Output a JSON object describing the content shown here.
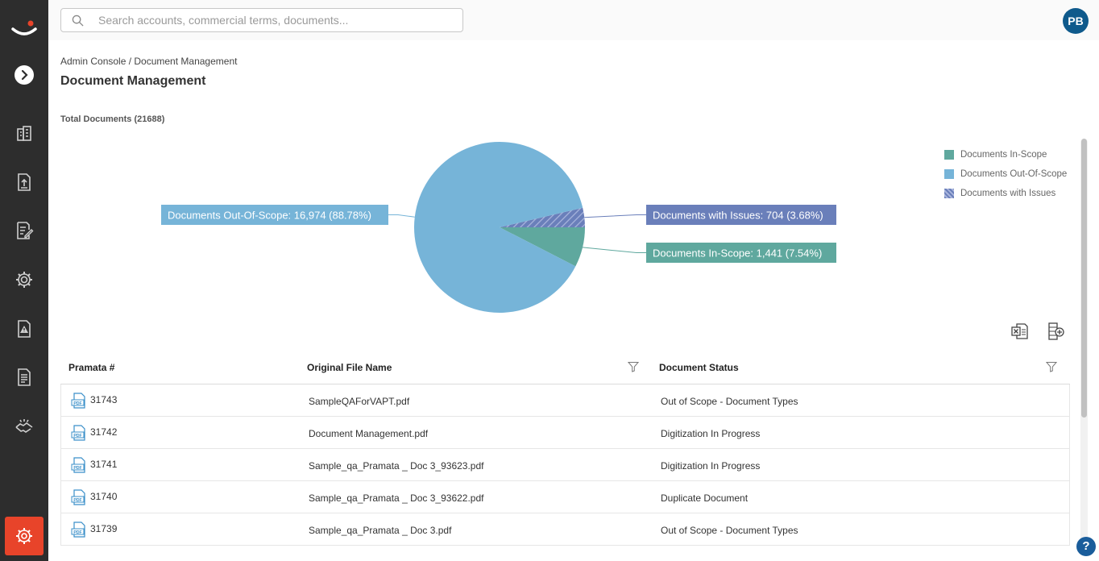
{
  "search": {
    "placeholder": "Search accounts, commercial terms, documents..."
  },
  "user": {
    "initials": "PB"
  },
  "breadcrumb": "Admin Console / Document Management",
  "page_title": "Document Management",
  "total_label": "Total Documents (21688)",
  "colors": {
    "in_scope": "#5fa89e",
    "out_of_scope": "#76b4d8",
    "issues": "#6a7fba",
    "sidebar": "#2d2d2d",
    "accent": "#e8442a"
  },
  "chart_data": {
    "type": "pie",
    "title": "",
    "slices": [
      {
        "name": "Documents Out-Of-Scope",
        "value": 16974,
        "percent": 88.78,
        "label": "Documents Out-Of-Scope: 16,974 (88.78%)",
        "color": "#76b4d8"
      },
      {
        "name": "Documents with Issues",
        "value": 704,
        "percent": 3.68,
        "label": "Documents with Issues: 704 (3.68%)",
        "color": "#6a7fba",
        "pattern": "hatched"
      },
      {
        "name": "Documents In-Scope",
        "value": 1441,
        "percent": 7.54,
        "label": "Documents In-Scope: 1,441 (7.54%)",
        "color": "#5fa89e"
      }
    ],
    "legend": [
      "Documents In-Scope",
      "Documents Out-Of-Scope",
      "Documents with Issues"
    ],
    "legend_position": "top-right"
  },
  "table": {
    "columns": [
      "Pramata #",
      "Original File Name",
      "Document Status"
    ],
    "rows": [
      {
        "id": "31743",
        "file": "SampleQAForVAPT.pdf",
        "status": "Out of Scope - Document Types"
      },
      {
        "id": "31742",
        "file": "Document Management.pdf",
        "status": "Digitization In Progress"
      },
      {
        "id": "31741",
        "file": "Sample_qa_Pramata _ Doc 3_93623.pdf",
        "status": "Digitization In Progress"
      },
      {
        "id": "31740",
        "file": "Sample_qa_Pramata _ Doc 3_93622.pdf",
        "status": "Duplicate Document"
      },
      {
        "id": "31739",
        "file": "Sample_qa_Pramata _ Doc 3.pdf",
        "status": "Out of Scope - Document Types"
      }
    ]
  },
  "icons": {
    "sidebar": [
      "logo-icon",
      "expand-icon",
      "buildings-icon",
      "upload-document-icon",
      "edit-document-icon",
      "gear-icon",
      "alert-document-icon",
      "report-icon",
      "handshake-icon",
      "admin-gear-icon"
    ],
    "tools": [
      "excel-export-icon",
      "column-settings-icon"
    ],
    "help": "?"
  }
}
